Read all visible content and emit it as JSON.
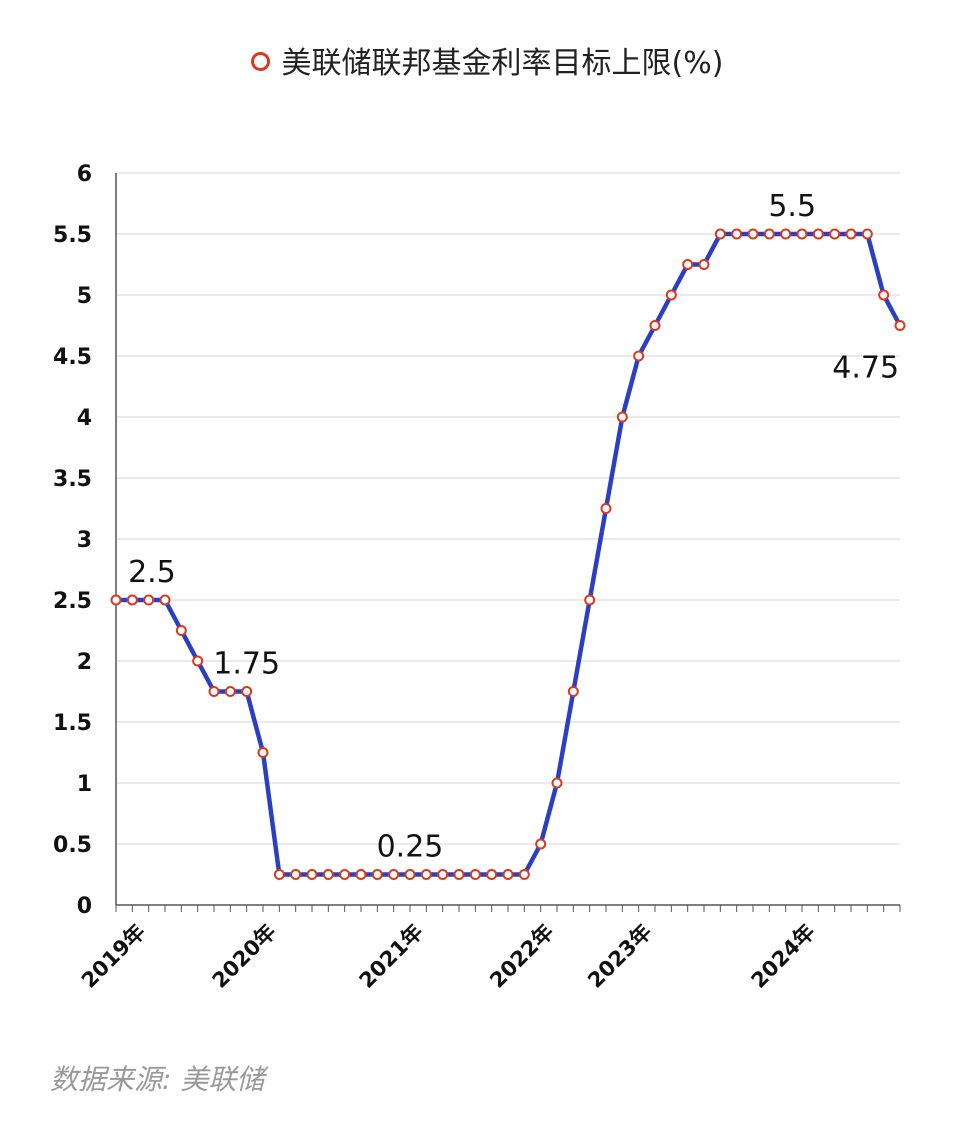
{
  "legend": {
    "label": "美联储联邦基金利率目标上限(%)"
  },
  "source": "数据来源: 美联储",
  "colors": {
    "line": "#2b3fc4",
    "marker_stroke": "#d93a1c",
    "grid": "#dddddd",
    "axis": "#555555"
  },
  "chart_data": {
    "type": "line",
    "series": [
      {
        "name": "美联储联邦基金利率目标上限(%)",
        "values": [
          2.5,
          2.5,
          2.5,
          2.5,
          2.25,
          2,
          1.75,
          1.75,
          1.75,
          1.25,
          0.25,
          0.25,
          0.25,
          0.25,
          0.25,
          0.25,
          0.25,
          0.25,
          0.25,
          0.25,
          0.25,
          0.25,
          0.25,
          0.25,
          0.25,
          0.25,
          0.5,
          1,
          1.75,
          2.5,
          3.25,
          4,
          4.5,
          4.75,
          5,
          5.25,
          5.25,
          5.5,
          5.5,
          5.5,
          5.5,
          5.5,
          5.5,
          5.5,
          5.5,
          5.5,
          5.5,
          5,
          4.75
        ]
      }
    ],
    "x_ticks": [
      {
        "label": "2019年",
        "index": 1.5
      },
      {
        "label": "2020年",
        "index": 9.5
      },
      {
        "label": "2021年",
        "index": 18.5
      },
      {
        "label": "2022年",
        "index": 26.5
      },
      {
        "label": "2023年",
        "index": 32.5
      },
      {
        "label": "2024年",
        "index": 42.5
      }
    ],
    "y_ticks": [
      "0",
      "0.5",
      "1",
      "1.5",
      "2",
      "2.5",
      "3",
      "3.5",
      "4",
      "4.5",
      "5",
      "5.5",
      "6"
    ],
    "ylim": [
      0,
      6
    ],
    "grid": true,
    "legend_position": "top-center",
    "annotations": [
      {
        "text": "2.5",
        "index": 2.2,
        "value": 2.5,
        "pos": "above"
      },
      {
        "text": "1.75",
        "index": 8,
        "value": 1.75,
        "pos": "above"
      },
      {
        "text": "0.25",
        "index": 18,
        "value": 0.25,
        "pos": "above"
      },
      {
        "text": "5.5",
        "index": 41.4,
        "value": 5.5,
        "pos": "above"
      },
      {
        "text": "4.75",
        "index": 45.9,
        "value": 4.75,
        "pos": "below"
      }
    ]
  }
}
